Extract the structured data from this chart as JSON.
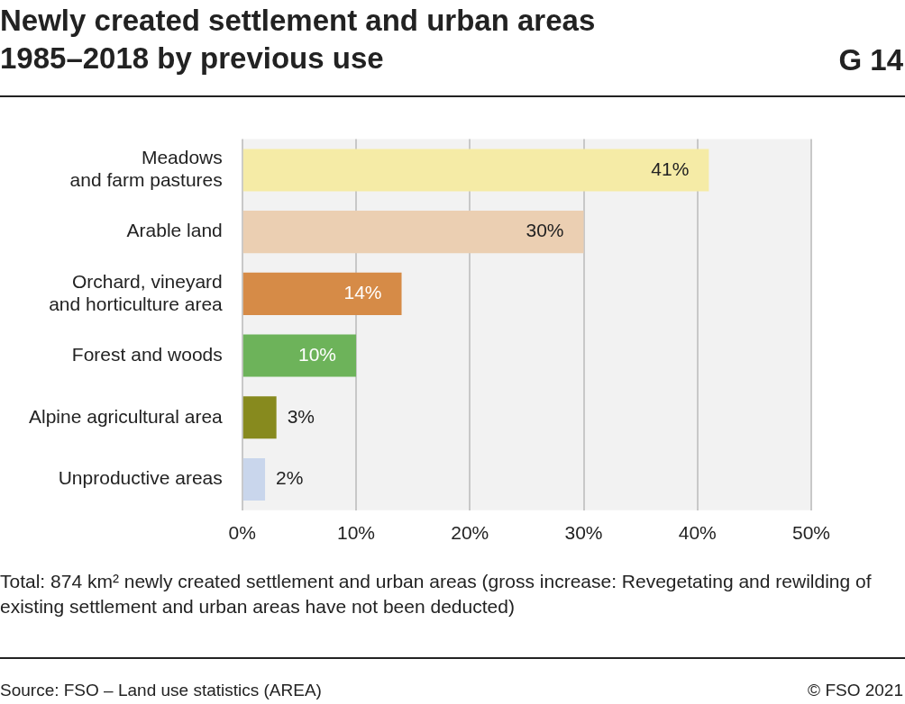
{
  "chart_data": {
    "type": "bar",
    "orientation": "horizontal",
    "title": "Newly created settlement and urban areas\n1985–2018 by previous use",
    "categories": [
      "Meadows\nand farm pastures",
      "Arable land",
      "Orchard, vineyard\nand horticulture area",
      "Forest and woods",
      "Alpine agricultural area",
      "Unproductive areas"
    ],
    "values": [
      41,
      30,
      14,
      10,
      3,
      2
    ],
    "colors": [
      "#f5eba6",
      "#ebcfb2",
      "#d68b47",
      "#6db35a",
      "#878a1e",
      "#c9d6ec"
    ],
    "xlim": [
      0,
      50
    ],
    "xticks": [
      {
        "value": 0,
        "label": "0%"
      },
      {
        "value": 10,
        "label": "10%"
      },
      {
        "value": 20,
        "label": "20%"
      },
      {
        "value": 30,
        "label": "30%"
      },
      {
        "value": 40,
        "label": "40%"
      },
      {
        "value": 50,
        "label": "50%"
      }
    ],
    "grid": "x",
    "legend": false,
    "value_labels": [
      "41%",
      "30%",
      "14%",
      "10%",
      "3%",
      "2%"
    ],
    "annotations": [
      "G 14",
      "Total: 874 km² newly created settlement and urban areas (gross increase: Revegetating and rewilding of existing settlement and urban areas have not been deducted)",
      "Source: FSO – Land use statistics (AREA)",
      "© FSO 2021"
    ]
  }
}
